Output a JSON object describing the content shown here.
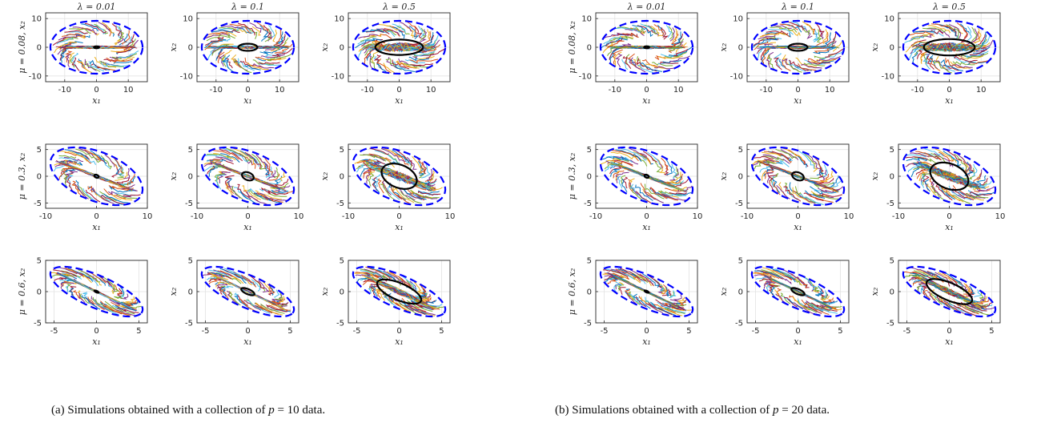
{
  "figures": [
    {
      "caption_pre": "(a) Simulations obtained with a collection of ",
      "caption_var": "p",
      "caption_eq": " = 10 data.",
      "p": 10
    },
    {
      "caption_pre": "(b) Simulations obtained with a collection of ",
      "caption_var": "p",
      "caption_eq": " = 20 data.",
      "p": 20
    }
  ],
  "chart_data": {
    "type": "line",
    "description_labels": {
      "columns": [
        "λ = 0.01",
        "λ = 0.1",
        "λ = 0.5"
      ],
      "rows": [
        "μ = 0.08, x₂",
        "μ = 0.3, x₂",
        "μ = 0.6, x₂"
      ],
      "xlabel": "x₁",
      "ylabel": "x₂"
    },
    "lambdas": [
      0.01,
      0.1,
      0.5
    ],
    "mus": [
      0.08,
      0.3,
      0.6
    ],
    "rows": [
      {
        "xlim": [
          -16,
          16
        ],
        "ylim": [
          -12,
          12
        ],
        "xticks": [
          -10,
          0,
          10
        ],
        "yticks": [
          -10,
          0,
          10
        ],
        "outer_ellipse": {
          "a": 14.5,
          "b": 9.2,
          "angle_deg": 0
        },
        "inner_ellipse_a": [
          0.8,
          3.0,
          7.5
        ],
        "inner_ellipse_ratio": 0.55,
        "inner_ellipse_a_b": [
          0.8,
          3.0,
          8.0
        ]
      },
      {
        "xlim": [
          -10,
          10
        ],
        "ylim": [
          -6,
          6
        ],
        "xticks": [
          -10,
          0,
          10
        ],
        "yticks": [
          -5,
          0,
          5
        ],
        "outer_ellipse": {
          "a": 9.5,
          "b": 4.6,
          "angle_deg": -20
        },
        "inner_ellipse_a": [
          0.45,
          1.2,
          3.6
        ],
        "inner_ellipse_ratio": 0.6,
        "inner_ellipse_a_b": [
          0.45,
          1.2,
          3.9
        ]
      },
      {
        "xlim": [
          -6,
          6
        ],
        "ylim": [
          -5,
          5
        ],
        "xticks": [
          -5,
          0,
          5
        ],
        "yticks": [
          -5,
          0,
          5
        ],
        "outer_ellipse": {
          "a": 6.3,
          "b": 2.4,
          "angle_deg": -33
        },
        "inner_ellipse_a": [
          0.28,
          0.9,
          3.0
        ],
        "inner_ellipse_ratio": 0.42,
        "inner_ellipse_a_b": [
          0.28,
          0.9,
          3.1
        ]
      }
    ],
    "colors": {
      "outer": "#0000ff",
      "inner": "#000000",
      "trajectories": [
        "#0072bd",
        "#d95319",
        "#edb120",
        "#7e2f8e",
        "#77ac30",
        "#4dbeee",
        "#a2142f"
      ]
    },
    "grid": true
  }
}
